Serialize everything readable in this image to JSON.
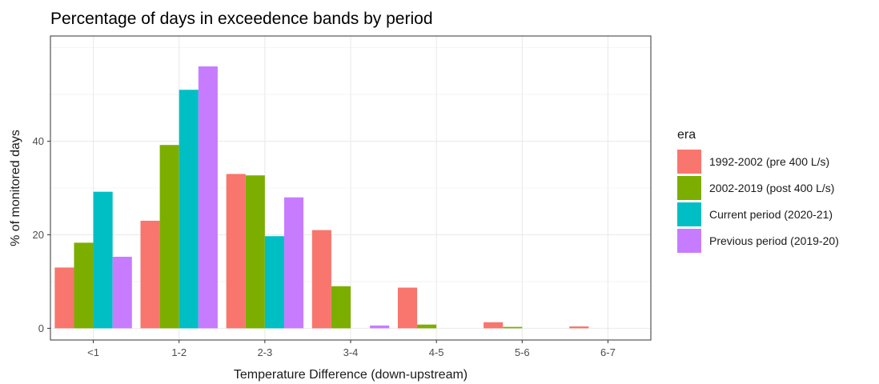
{
  "chart_data": {
    "type": "bar",
    "title": "Percentage of days in exceedence bands by period",
    "xlabel": "Temperature Difference (down-upstream)",
    "ylabel": "% of monitored days",
    "categories": [
      "<1",
      "1-2",
      "2-3",
      "3-4",
      "4-5",
      "5-6",
      "6-7"
    ],
    "ylim": [
      -2.5,
      62.5
    ],
    "yticks": [
      0,
      20,
      40
    ],
    "grid": true,
    "legend_position": "right",
    "legend_title": "era",
    "series": [
      {
        "name": "1992-2002 (pre 400 L/s)",
        "color": "#F8766D",
        "values": [
          13.0,
          23.0,
          33.0,
          21.0,
          8.7,
          1.3,
          0.4
        ]
      },
      {
        "name": "2002-2019 (post 400 L/s)",
        "color": "#7CAE00",
        "values": [
          18.3,
          39.2,
          32.7,
          9.0,
          0.8,
          0.3,
          null
        ]
      },
      {
        "name": "Current period (2020-21)",
        "color": "#00BFC4",
        "values": [
          29.2,
          51.0,
          19.7,
          null,
          null,
          null,
          null
        ]
      },
      {
        "name": "Previous period (2019-20)",
        "color": "#C77CFF",
        "values": [
          15.3,
          56.0,
          28.0,
          0.6,
          null,
          null,
          null
        ]
      }
    ]
  }
}
